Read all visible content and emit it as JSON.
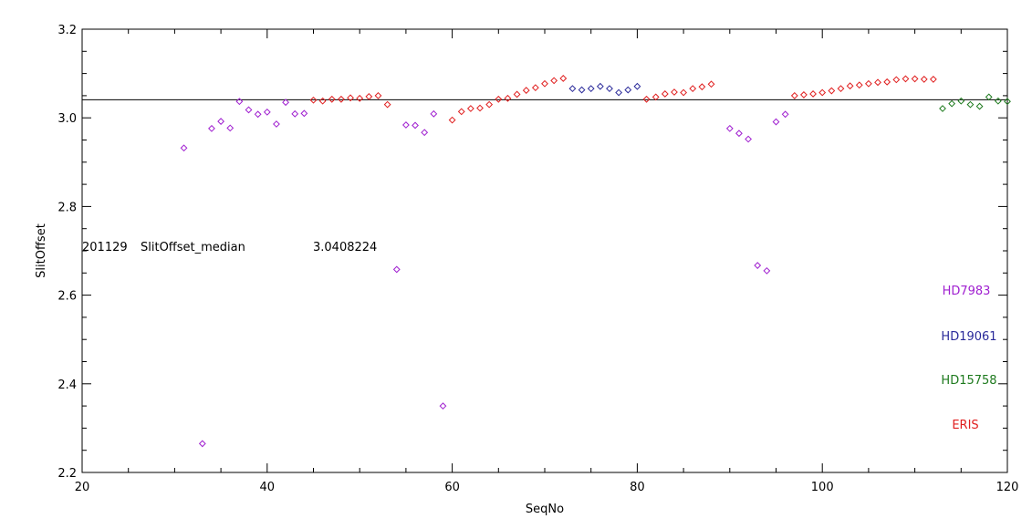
{
  "chart_data": {
    "type": "scatter",
    "xlabel": "SeqNo",
    "ylabel": "SlitOffset",
    "xlim": [
      20,
      120
    ],
    "ylim": [
      2.2,
      3.2
    ],
    "x_ticks": [
      20,
      40,
      60,
      80,
      100,
      120
    ],
    "y_ticks": [
      2.2,
      2.4,
      2.6,
      2.8,
      3.0,
      3.2
    ],
    "x_tick_labels": [
      "20",
      "40",
      "60",
      "80",
      "100",
      "120"
    ],
    "y_tick_labels": [
      "2.2",
      "2.4",
      "2.6",
      "2.8",
      "3.0",
      "3.2"
    ],
    "marker": "diamond",
    "median_line": 3.0408224,
    "annotation": {
      "date": "201129",
      "label": "SlitOffset_median",
      "value": "3.0408224"
    },
    "series": [
      {
        "name": "HD7983",
        "color": "#a020d0",
        "x": [
          31,
          33,
          34,
          35,
          36,
          37,
          38,
          39,
          40,
          41,
          42,
          43,
          44,
          54,
          55,
          56,
          57,
          58,
          59,
          90,
          91,
          92,
          93,
          94,
          95,
          96
        ],
        "y": [
          2.932,
          2.265,
          2.976,
          2.992,
          2.977,
          3.037,
          3.018,
          3.008,
          3.013,
          2.986,
          3.035,
          3.009,
          3.01,
          2.658,
          2.984,
          2.983,
          2.967,
          3.009,
          2.35,
          2.976,
          2.965,
          2.952,
          2.667,
          2.655,
          2.991,
          3.008
        ]
      },
      {
        "name": "HD19061",
        "color": "#2a2a9a",
        "x": [
          73,
          74,
          75,
          76,
          77,
          78,
          79,
          80
        ],
        "y": [
          3.066,
          3.063,
          3.066,
          3.071,
          3.066,
          3.057,
          3.063,
          3.071
        ]
      },
      {
        "name": "HD15758",
        "color": "#1e7a1e",
        "x": [
          113,
          114,
          115,
          116,
          117,
          118,
          119,
          120
        ],
        "y": [
          3.021,
          3.032,
          3.038,
          3.03,
          3.026,
          3.047,
          3.038,
          3.037
        ]
      },
      {
        "name": "ERIS",
        "color": "#e01e1e",
        "x": [
          45,
          46,
          47,
          48,
          49,
          50,
          51,
          52,
          53,
          60,
          61,
          62,
          63,
          64,
          65,
          66,
          67,
          68,
          69,
          70,
          71,
          72,
          81,
          82,
          83,
          84,
          85,
          86,
          87,
          88,
          97,
          98,
          99,
          100,
          101,
          102,
          103,
          104,
          105,
          106,
          107,
          108,
          109,
          110,
          111,
          112
        ],
        "y": [
          3.04,
          3.038,
          3.042,
          3.042,
          3.045,
          3.044,
          3.048,
          3.05,
          3.03,
          2.995,
          3.014,
          3.021,
          3.022,
          3.03,
          3.042,
          3.044,
          3.053,
          3.062,
          3.068,
          3.077,
          3.084,
          3.089,
          3.042,
          3.047,
          3.054,
          3.058,
          3.057,
          3.066,
          3.07,
          3.076,
          3.05,
          3.052,
          3.054,
          3.057,
          3.061,
          3.066,
          3.072,
          3.074,
          3.077,
          3.08,
          3.081,
          3.086,
          3.088,
          3.088,
          3.087,
          3.087
        ]
      }
    ]
  }
}
